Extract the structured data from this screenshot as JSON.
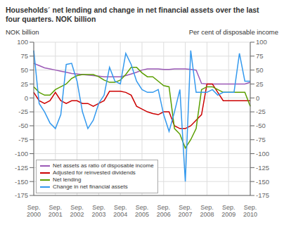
{
  "chart_data": {
    "type": "line",
    "title": "Households´ net lending and change in net financial assets over the last\nfour quarters. NOK billion",
    "ylabel": "NOK billion",
    "y2label": "Per cent of disposable income",
    "categories": [
      "Sep.\n2000",
      null,
      null,
      null,
      "Sep.\n2001",
      null,
      null,
      null,
      "Sep.\n2002",
      null,
      null,
      null,
      "Sep.\n2003",
      null,
      null,
      null,
      "Sep.\n2004",
      null,
      null,
      null,
      "Sep.\n2005",
      null,
      null,
      null,
      "Sep.\n2006",
      null,
      null,
      null,
      "Sep.\n2007",
      null,
      null,
      null,
      "Sep.\n2008",
      null,
      null,
      null,
      "Sep.\n2009",
      null,
      null,
      null,
      "Sep.\n2010"
    ],
    "series": [
      {
        "name": "Net assets as ratio of disposable income",
        "color": "#9b59b6",
        "values": [
          62,
          58,
          54,
          52,
          50,
          48,
          46,
          44,
          43,
          42,
          41,
          40,
          39,
          38,
          38,
          38,
          38,
          40,
          43,
          46,
          50,
          52,
          52,
          52,
          51,
          51,
          52,
          52,
          52,
          51,
          50,
          26,
          25,
          25,
          25,
          25,
          25,
          25,
          25,
          25,
          28
        ]
      },
      {
        "name": "Adjusted for reinvested dividends",
        "color": "#cc0000",
        "values": [
          10,
          -5,
          -10,
          -5,
          10,
          -5,
          -10,
          -5,
          -5,
          -10,
          -10,
          -15,
          -10,
          -5,
          12,
          12,
          12,
          10,
          5,
          -15,
          -20,
          -25,
          -28,
          -30,
          -25,
          -25,
          -50,
          -55,
          -55,
          -50,
          -40,
          -30,
          25,
          25,
          10,
          -5,
          -5,
          -5,
          -5,
          -5,
          -5
        ]
      },
      {
        "name": "Net lending",
        "color": "#5a9e00",
        "values": [
          20,
          10,
          5,
          5,
          15,
          20,
          25,
          35,
          40,
          42,
          42,
          42,
          38,
          32,
          28,
          28,
          32,
          42,
          55,
          55,
          45,
          38,
          38,
          30,
          22,
          20,
          -55,
          -65,
          -90,
          -75,
          -55,
          15,
          20,
          20,
          15,
          10,
          10,
          10,
          10,
          10,
          -15
        ]
      },
      {
        "name": "Change in net financial assets",
        "color": "#3399ee",
        "values": [
          85,
          -10,
          -25,
          -45,
          -55,
          -30,
          60,
          62,
          30,
          -25,
          -55,
          -40,
          -10,
          5,
          55,
          30,
          25,
          80,
          60,
          30,
          15,
          10,
          10,
          15,
          -30,
          -60,
          -25,
          15,
          -150,
          85,
          10,
          10,
          10,
          15,
          5,
          10,
          10,
          10,
          80,
          30,
          30
        ]
      }
    ],
    "ylim": [
      -175,
      100
    ],
    "yticks": [
      -175,
      -150,
      -125,
      -100,
      -75,
      -50,
      -25,
      0,
      25,
      50,
      75,
      100
    ],
    "y2lim": [
      -175,
      100
    ],
    "y2ticks": [
      -175,
      -150,
      -125,
      -100,
      -75,
      -50,
      -25,
      0,
      25,
      50,
      75,
      100
    ],
    "grid": true,
    "legend": "lower left"
  }
}
